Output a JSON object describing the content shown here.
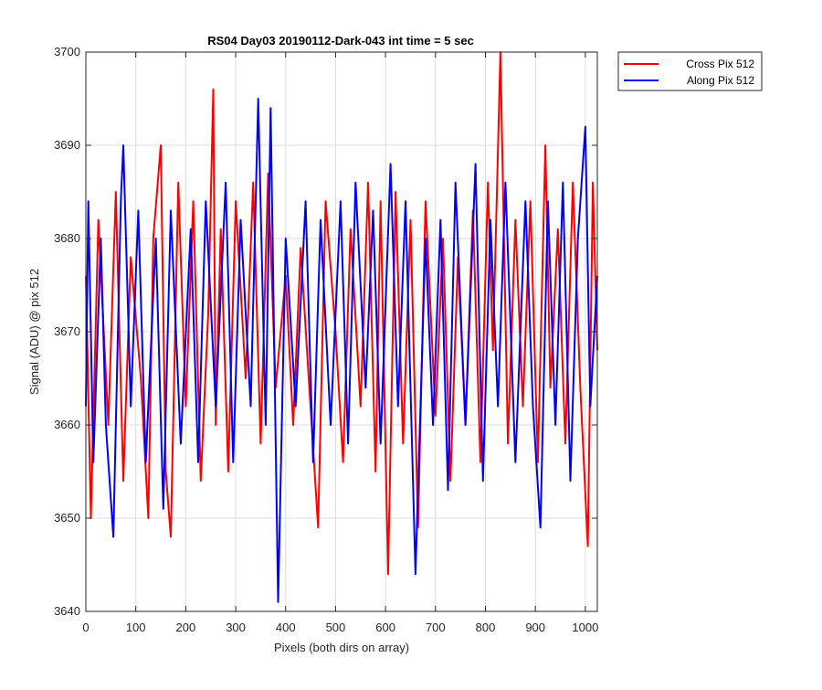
{
  "chart_data": {
    "type": "line",
    "title": "RS04 Day03 20190112-Dark-043 int time = 5 sec",
    "xlabel": "Pixels (both dirs on array)",
    "ylabel": "Signal (ADU) @ pix 512",
    "xlim": [
      0,
      1024
    ],
    "ylim": [
      3640,
      3700
    ],
    "xticks": [
      0,
      100,
      200,
      300,
      400,
      500,
      600,
      700,
      800,
      900,
      1000
    ],
    "yticks": [
      3640,
      3650,
      3660,
      3670,
      3680,
      3690,
      3700
    ],
    "grid": true,
    "legend_position": "outside-top-right",
    "series": [
      {
        "name": "Cross Pix 512",
        "color": "#ff0000",
        "x": [
          0,
          10,
          25,
          45,
          60,
          75,
          90,
          110,
          125,
          135,
          150,
          160,
          170,
          185,
          200,
          215,
          230,
          245,
          255,
          260,
          270,
          285,
          300,
          320,
          335,
          350,
          365,
          380,
          400,
          415,
          430,
          445,
          465,
          480,
          500,
          515,
          530,
          550,
          565,
          580,
          590,
          605,
          620,
          635,
          650,
          665,
          680,
          700,
          715,
          730,
          745,
          760,
          775,
          790,
          805,
          815,
          830,
          845,
          860,
          875,
          890,
          905,
          920,
          930,
          945,
          960,
          975,
          990,
          1005,
          1015,
          1024
        ],
        "y": [
          3676,
          3650,
          3682,
          3660,
          3685,
          3654,
          3678,
          3665,
          3650,
          3680,
          3690,
          3655,
          3648,
          3686,
          3662,
          3684,
          3654,
          3672,
          3696,
          3660,
          3681,
          3655,
          3684,
          3665,
          3686,
          3658,
          3687,
          3664,
          3676,
          3660,
          3679,
          3666,
          3649,
          3684,
          3670,
          3656,
          3681,
          3662,
          3686,
          3655,
          3684,
          3644,
          3685,
          3658,
          3682,
          3649,
          3684,
          3661,
          3680,
          3654,
          3678,
          3660,
          3683,
          3656,
          3686,
          3668,
          3700,
          3658,
          3682,
          3662,
          3684,
          3656,
          3690,
          3664,
          3681,
          3658,
          3686,
          3664,
          3647,
          3686,
          3668
        ]
      },
      {
        "name": "Along Pix 512",
        "color": "#0000ff",
        "x": [
          0,
          5,
          15,
          30,
          40,
          55,
          70,
          75,
          90,
          105,
          120,
          140,
          155,
          170,
          190,
          210,
          225,
          240,
          260,
          280,
          295,
          310,
          330,
          345,
          360,
          370,
          385,
          400,
          420,
          440,
          455,
          470,
          490,
          510,
          525,
          540,
          560,
          575,
          590,
          610,
          625,
          640,
          660,
          680,
          695,
          710,
          725,
          740,
          760,
          780,
          795,
          810,
          825,
          840,
          860,
          880,
          895,
          910,
          925,
          940,
          955,
          970,
          985,
          1000,
          1010,
          1024
        ],
        "y": [
          3662,
          3684,
          3656,
          3680,
          3660,
          3648,
          3684,
          3690,
          3662,
          3683,
          3656,
          3680,
          3651,
          3683,
          3658,
          3681,
          3656,
          3684,
          3662,
          3686,
          3656,
          3682,
          3662,
          3695,
          3660,
          3694,
          3641,
          3680,
          3662,
          3684,
          3656,
          3682,
          3660,
          3684,
          3658,
          3686,
          3664,
          3683,
          3658,
          3688,
          3662,
          3684,
          3644,
          3680,
          3660,
          3682,
          3653,
          3686,
          3660,
          3688,
          3654,
          3682,
          3662,
          3686,
          3656,
          3684,
          3662,
          3649,
          3684,
          3660,
          3686,
          3654,
          3680,
          3692,
          3662,
          3676
        ]
      }
    ]
  }
}
